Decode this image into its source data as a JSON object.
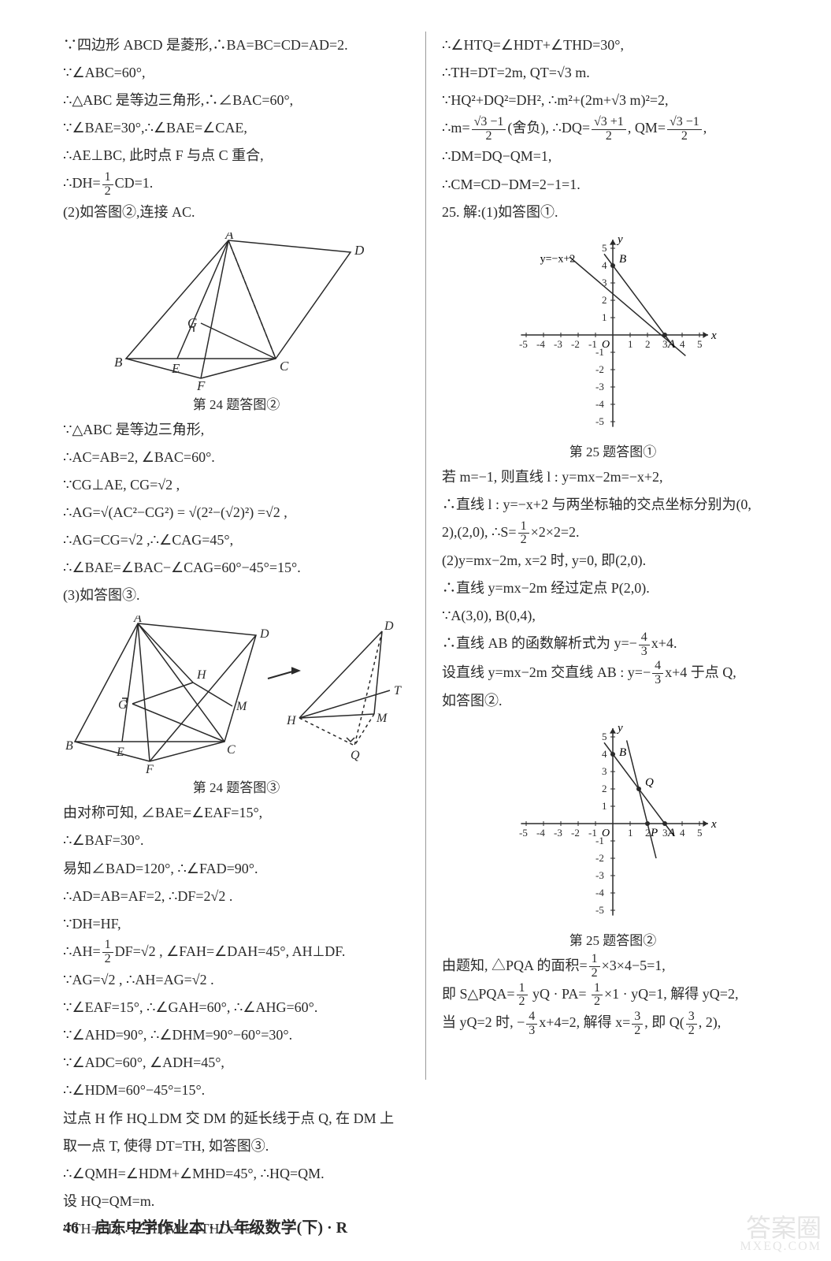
{
  "footer": "46　启东中学作业本 · 八年级数学(下) · R",
  "watermark": {
    "big": "答案圈",
    "small": "MXEQ.COM"
  },
  "left": {
    "lines1": [
      "∵四边形 ABCD 是菱形,∴BA=BC=CD=AD=2.",
      "∵∠ABC=60°,",
      "∴△ABC 是等边三角形,∴∠BAC=60°,",
      "∵∠BAE=30°,∴∠BAE=∠CAE,",
      "∴AE⊥BC, 此时点 F 与点 C 重合,"
    ],
    "line_dh": {
      "pre": "∴DH=",
      "n": "1",
      "d": "2",
      "post": "CD=1."
    },
    "line2": "(2)如答图②,连接 AC.",
    "fig24_2": {
      "caption": "第 24 题答图②",
      "labels": {
        "A": "A",
        "B": "B",
        "C": "C",
        "D": "D",
        "E": "E",
        "F": "F",
        "G": "G"
      },
      "A": [
        160,
        10
      ],
      "D": [
        315,
        25
      ],
      "B": [
        30,
        160
      ],
      "C": [
        220,
        160
      ],
      "E": [
        95,
        160
      ],
      "F": [
        125,
        185
      ],
      "G": [
        125,
        115
      ],
      "stroke": "#2a2a2a"
    },
    "lines3": [
      "∵△ABC 是等边三角形,",
      "∴AC=AB=2, ∠BAC=60°."
    ],
    "line_cg": "∵CG⊥AE, CG=√2 ,",
    "line_ag": "∴AG=√(AC²−CG²) = √(2²−(√2)²) =√2 ,",
    "line_ag2": "∴AG=CG=√2 ,∴∠CAG=45°,",
    "line_bae": "∴∠BAE=∠BAC−∠CAG=60°−45°=15°.",
    "line3": "(3)如答图③.",
    "fig24_3": {
      "caption": "第 24 题答图③",
      "leftA": [
        95,
        10
      ],
      "leftD": [
        245,
        25
      ],
      "leftB": [
        15,
        160
      ],
      "leftC": [
        205,
        160
      ],
      "leftE": [
        75,
        160
      ],
      "leftF": [
        110,
        185
      ],
      "leftG": [
        88,
        112
      ],
      "leftH": [
        165,
        85
      ],
      "leftM": [
        215,
        115
      ],
      "rightD": [
        405,
        20
      ],
      "rightH": [
        300,
        130
      ],
      "rightM": [
        395,
        125
      ],
      "rightT": [
        415,
        95
      ],
      "rightQ": [
        370,
        165
      ],
      "stroke": "#2a2a2a"
    },
    "lines4": [
      "由对称可知, ∠BAE=∠EAF=15°,",
      "∴∠BAF=30°.",
      "易知∠BAD=120°, ∴∠FAD=90°.",
      "∴AD=AB=AF=2, ∴DF=2√2 .",
      "∵DH=HF,"
    ],
    "line_ah": {
      "pre": "∴AH=",
      "n": "1",
      "d": "2",
      "post": "DF=√2 , ∠FAH=∠DAH=45°, AH⊥DF."
    },
    "lines5": [
      "∵AG=√2 , ∴AH=AG=√2 .",
      "∵∠EAF=15°, ∴∠GAH=60°, ∴∠AHG=60°.",
      "∵∠AHD=90°, ∴∠DHM=90°−60°=30°.",
      "∵∠ADC=60°, ∠ADH=45°,",
      "∴∠HDM=60°−45°=15°.",
      "过点 H 作 HQ⊥DM 交 DM 的延长线于点 Q, 在 DM 上",
      "取一点 T, 使得 DT=TH, 如答图③.",
      "∴∠QMH=∠HDM+∠MHD=45°, ∴HQ=QM.",
      "设 HQ=QM=m.",
      "∵TH=TD, ∴∠HDM=∠THD=15°,"
    ]
  },
  "right": {
    "lines1": [
      "∴∠HTQ=∠HDT+∠THD=30°,",
      "∴TH=DT=2m, QT=√3 m.",
      "∵HQ²+DQ²=DH², ∴m²+(2m+√3 m)²=2,"
    ],
    "line_m": {
      "pre": "∴m=",
      "n1": "√3 −1",
      "d1": "2",
      "mid": "(舍负), ∴DQ=",
      "n2": "√3 +1",
      "d2": "2",
      "mid2": ", QM=",
      "n3": "√3 −1",
      "d3": "2",
      "post": ","
    },
    "lines2": [
      "∴DM=DQ−QM=1,",
      "∴CM=CD−DM=2−1=1.",
      "25. 解:(1)如答图①."
    ],
    "fig25_1": {
      "caption": "第 25 题答图①",
      "xmin": -5,
      "xmax": 5,
      "ymin": -5,
      "ymax": 5,
      "xticks": [
        -5,
        -4,
        -3,
        -2,
        -1,
        1,
        2,
        3,
        4,
        5
      ],
      "yticks": [
        -5,
        -4,
        -3,
        -2,
        -1,
        1,
        2,
        3,
        4,
        5
      ],
      "line1_label": "y=−x+2",
      "B_label": "B",
      "A_label": "A",
      "O_label": "O",
      "B": [
        0,
        4
      ],
      "A": [
        3,
        0
      ],
      "line1": [
        [
          -2.5,
          4.5
        ],
        [
          4.2,
          -1.2
        ]
      ],
      "lineAB": [
        [
          -0.5,
          4.67
        ],
        [
          3.5,
          -0.67
        ]
      ],
      "axis_color": "#2a2a2a",
      "grid_color": "#2a2a2a"
    },
    "lines3": [
      "若 m=−1, 则直线 l : y=mx−2m=−x+2,",
      "∴直线 l : y=−x+2 与两坐标轴的交点坐标分别为(0,"
    ],
    "line_s": {
      "pre": "2),(2,0), ∴S=",
      "n": "1",
      "d": "2",
      "post": "×2×2=2."
    },
    "lines4": [
      "(2)y=mx−2m, x=2 时, y=0, 即(2,0).",
      "∴直线 y=mx−2m 经过定点 P(2,0).",
      "∵A(3,0), B(0,4),"
    ],
    "line_ab": {
      "pre": "∴直线 AB 的函数解析式为 y=−",
      "n": "4",
      "d": "3",
      "post": "x+4."
    },
    "line_q": {
      "pre": "设直线 y=mx−2m 交直线 AB : y=−",
      "n": "4",
      "d": "3",
      "post": "x+4 于点 Q,"
    },
    "line_q2": "如答图②.",
    "fig25_2": {
      "caption": "第 25 题答图②",
      "xmin": -5,
      "xmax": 5,
      "ymin": -5,
      "ymax": 5,
      "xticks": [
        -5,
        -4,
        -3,
        -2,
        -1,
        1,
        2,
        3,
        4,
        5
      ],
      "yticks": [
        -5,
        -4,
        -3,
        -2,
        -1,
        1,
        2,
        3,
        4,
        5
      ],
      "B_label": "B",
      "A_label": "A",
      "O_label": "O",
      "P_label": "P",
      "Q_label": "Q",
      "B": [
        0,
        4
      ],
      "A": [
        3,
        0
      ],
      "P": [
        2,
        0
      ],
      "Q": [
        1.5,
        2
      ],
      "lineAB": [
        [
          -0.5,
          4.67
        ],
        [
          3.5,
          -0.67
        ]
      ],
      "lineQ": [
        [
          0.8,
          4.8
        ],
        [
          2.5,
          -2.0
        ]
      ],
      "axis_color": "#2a2a2a"
    },
    "line_area": {
      "pre": "由题知, △PQA 的面积=",
      "n": "1",
      "d": "2",
      "post": "×3×4−5=1,"
    },
    "line_spqa": {
      "pre": "即 S△PQA=",
      "n1": "1",
      "d1": "2",
      "mid": " yQ · PA= ",
      "n2": "1",
      "d2": "2",
      "post": "×1 · yQ=1, 解得 yQ=2,"
    },
    "line_last": {
      "pre": "当 yQ=2 时, −",
      "n1": "4",
      "d1": "3",
      "mid": "x+4=2, 解得 x=",
      "n2": "3",
      "d2": "2",
      "mid2": ", 即 Q(",
      "n3": "3",
      "d3": "2",
      "post": ", 2),"
    }
  }
}
